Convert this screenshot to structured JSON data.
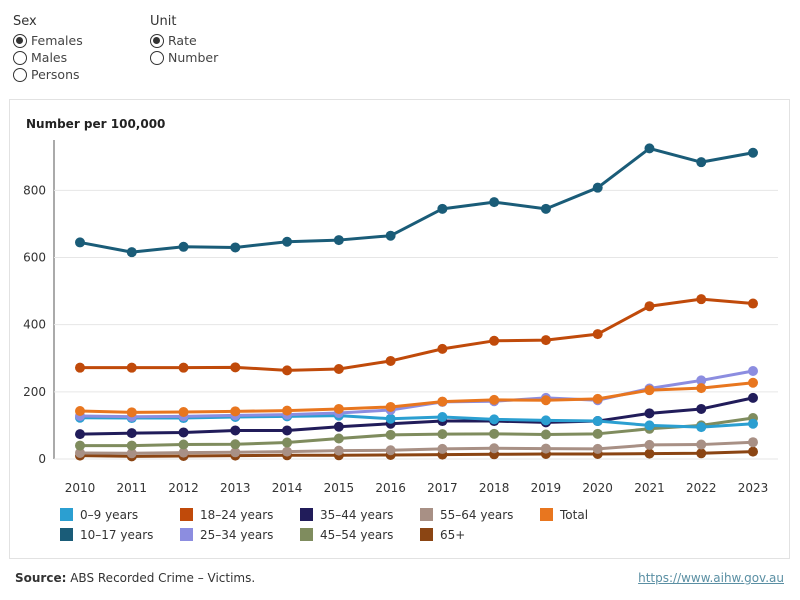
{
  "controls": {
    "sex": {
      "title": "Sex",
      "options": [
        "Females",
        "Males",
        "Persons"
      ],
      "selected": "Females"
    },
    "unit": {
      "title": "Unit",
      "options": [
        "Rate",
        "Number"
      ],
      "selected": "Rate"
    }
  },
  "chart_data": {
    "type": "line",
    "ylabel": "Number per 100,000",
    "xlabel": "",
    "x": [
      2010,
      2011,
      2012,
      2013,
      2014,
      2015,
      2016,
      2017,
      2018,
      2019,
      2020,
      2021,
      2022,
      2023
    ],
    "ylim": [
      0,
      950
    ],
    "yticks": [
      0,
      200,
      400,
      600,
      800
    ],
    "grid": true,
    "legend_position": "bottom",
    "series": [
      {
        "name": "0–9 years",
        "color": "#2b9fd1",
        "values": [
          123,
          122,
          122,
          125,
          127,
          129,
          120,
          125,
          118,
          115,
          113,
          100,
          95,
          105
        ]
      },
      {
        "name": "10–17 years",
        "color": "#1a5c78",
        "values": [
          645,
          616,
          632,
          630,
          647,
          652,
          665,
          745,
          765,
          745,
          808,
          925,
          884,
          912
        ]
      },
      {
        "name": "18–24 years",
        "color": "#c04a0a",
        "values": [
          272,
          272,
          272,
          273,
          264,
          268,
          292,
          328,
          352,
          354,
          372,
          455,
          476,
          463
        ]
      },
      {
        "name": "25–34 years",
        "color": "#8c8de0",
        "values": [
          128,
          126,
          127,
          130,
          132,
          137,
          146,
          170,
          172,
          182,
          175,
          210,
          234,
          262
        ]
      },
      {
        "name": "35–44 years",
        "color": "#211c5a",
        "values": [
          74,
          77,
          79,
          85,
          85,
          96,
          105,
          113,
          113,
          109,
          113,
          136,
          149,
          182
        ]
      },
      {
        "name": "45–54 years",
        "color": "#7f8c5e",
        "values": [
          40,
          40,
          43,
          44,
          49,
          61,
          72,
          74,
          75,
          73,
          75,
          90,
          100,
          122
        ]
      },
      {
        "name": "55–64 years",
        "color": "#a89085",
        "values": [
          18,
          17,
          19,
          20,
          22,
          25,
          26,
          30,
          32,
          31,
          30,
          42,
          43,
          50
        ]
      },
      {
        "name": "65+",
        "color": "#8b4513",
        "values": [
          10,
          8,
          9,
          10,
          11,
          11,
          12,
          13,
          14,
          15,
          15,
          16,
          17,
          22
        ]
      },
      {
        "name": "Total",
        "color": "#e8761f",
        "values": [
          143,
          139,
          140,
          142,
          144,
          149,
          155,
          171,
          176,
          175,
          179,
          205,
          211,
          227
        ]
      }
    ]
  },
  "legend_order": [
    0,
    2,
    4,
    6,
    8,
    1,
    3,
    5,
    7
  ],
  "footer": {
    "source_label": "Source:",
    "source_text": " ABS Recorded Crime – Victims.",
    "url": "https://www.aihw.gov.au"
  }
}
